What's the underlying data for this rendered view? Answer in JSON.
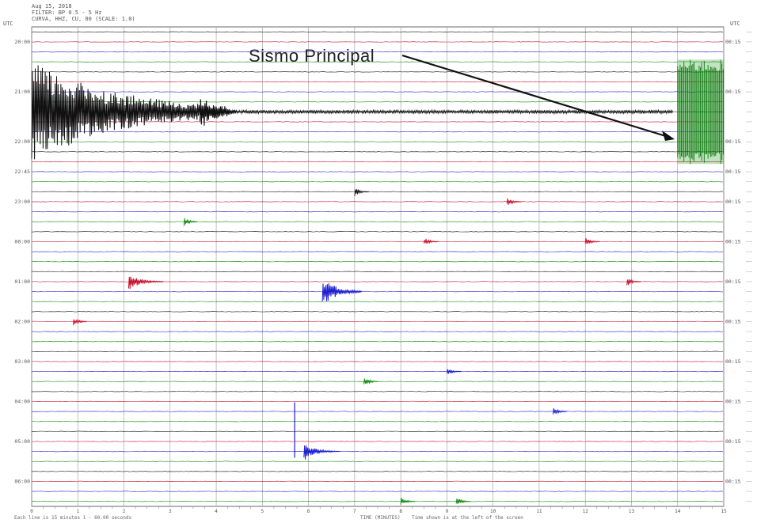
{
  "header": {
    "line1": "Aug 15, 2018",
    "line2": "FILTER: BP 0.5 - 5 Hz",
    "line3": "CURVA, HHZ, CU, 00 (SCALE: 1.0)"
  },
  "left_axis_title": "UTC",
  "right_axis_title": "UTC",
  "annotation": {
    "label": "Sismo Principal",
    "arrow_color": "#111111"
  },
  "footer": {
    "left_text": "Each line is 15 minutes  1 - 60.00 seconds",
    "center_text": "TIME (MINUTES)",
    "right_text": "Time shown is at the left of the screen"
  },
  "chart_data": {
    "type": "helicorder",
    "title": "",
    "xlabel": "TIME (MINUTES)",
    "x_ticks": [
      "0",
      "1",
      "2",
      "3",
      "4",
      "5",
      "6",
      "7",
      "8",
      "9",
      "10",
      "11",
      "12",
      "13",
      "14",
      "15"
    ],
    "x_range": [
      0,
      15
    ],
    "line_minutes": 15,
    "trace_colors": [
      "#c8102e",
      "#1f1fd0",
      "#0a8a0a",
      "#111111"
    ],
    "grid": true,
    "left_labels": [
      "20:00",
      "21:00",
      "22:00",
      "22:45",
      "23:00",
      "00:00",
      "01:00",
      "02:00",
      "03:00",
      "04:00",
      "05:00",
      "06:00"
    ],
    "left_label_rows": [
      1,
      6,
      11,
      14,
      17,
      21,
      25,
      29,
      33,
      37,
      41,
      45
    ],
    "right_labels": [
      "00:15",
      "00:15",
      "00:15",
      "00:15",
      "00:15",
      "00:15",
      "00:15",
      "00:15",
      "00:15",
      "00:15",
      "00:15",
      "00:15"
    ],
    "rows": 48,
    "events": [
      {
        "row": 8,
        "minute": 0.0,
        "end_minute": 4.3,
        "color": "black",
        "kind": "mainshock-coda",
        "amplitude": 1.0
      },
      {
        "row": 8,
        "minute": 14.0,
        "end_minute": 15.0,
        "color": "green",
        "kind": "mainshock-onset",
        "amplitude": 1.0
      },
      {
        "row": 16,
        "minute": 7.0,
        "color": "black",
        "kind": "small"
      },
      {
        "row": 17,
        "minute": 10.3,
        "color": "red",
        "kind": "small"
      },
      {
        "row": 19,
        "minute": 3.3,
        "color": "green",
        "kind": "small"
      },
      {
        "row": 21,
        "minute": 8.5,
        "color": "red",
        "kind": "small"
      },
      {
        "row": 21,
        "minute": 12.0,
        "color": "red",
        "kind": "small"
      },
      {
        "row": 25,
        "minute": 2.1,
        "color": "red",
        "kind": "medium"
      },
      {
        "row": 26,
        "minute": 6.3,
        "color": "blue",
        "kind": "large"
      },
      {
        "row": 25,
        "minute": 12.9,
        "color": "red",
        "kind": "small"
      },
      {
        "row": 29,
        "minute": 0.9,
        "color": "red",
        "kind": "small"
      },
      {
        "row": 34,
        "minute": 9.0,
        "color": "blue",
        "kind": "small"
      },
      {
        "row": 35,
        "minute": 7.2,
        "color": "green",
        "kind": "small"
      },
      {
        "row": 38,
        "minute": 11.3,
        "color": "blue",
        "kind": "small"
      },
      {
        "row": 42,
        "minute": 5.7,
        "color": "blue",
        "kind": "spike"
      },
      {
        "row": 42,
        "minute": 5.9,
        "color": "blue",
        "kind": "medium"
      },
      {
        "row": 47,
        "minute": 8.0,
        "color": "green",
        "kind": "small"
      },
      {
        "row": 47,
        "minute": 9.2,
        "color": "green",
        "kind": "small"
      }
    ]
  }
}
